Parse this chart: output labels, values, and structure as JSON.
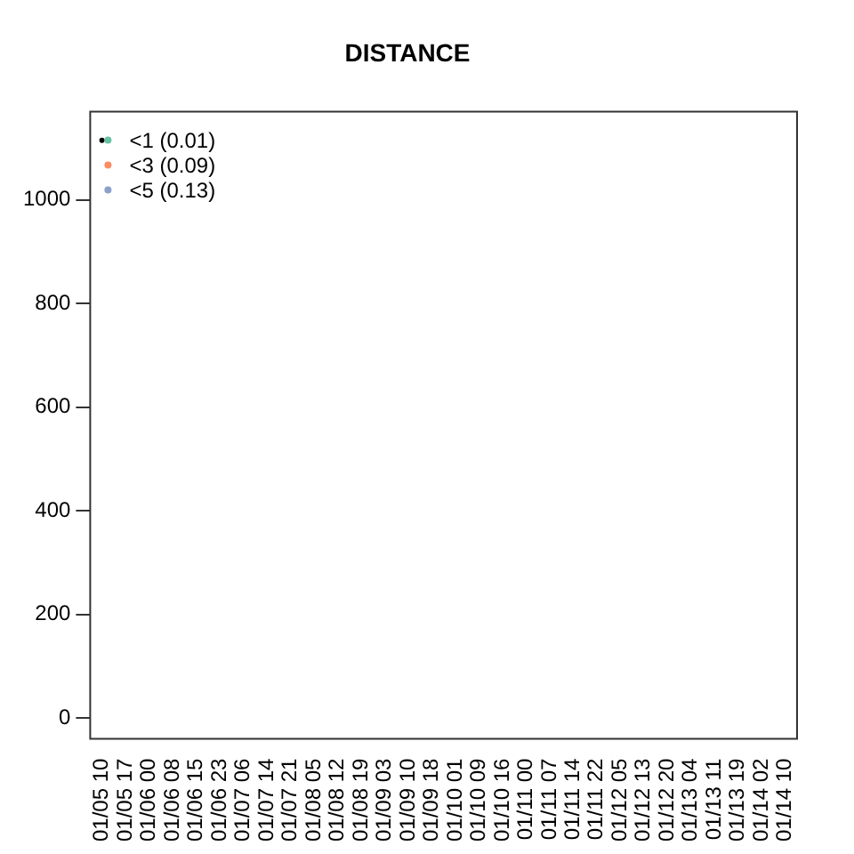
{
  "chart_data": {
    "type": "scatter",
    "title": "DISTANCE",
    "categories": [
      "01/05 10",
      "01/05 17",
      "01/06 00",
      "01/06 08",
      "01/06 15",
      "01/06 23",
      "01/07 06",
      "01/07 14",
      "01/07 21",
      "01/08 05",
      "01/08 12",
      "01/08 19",
      "01/09 03",
      "01/09 10",
      "01/09 18",
      "01/10 01",
      "01/10 09",
      "01/10 16",
      "01/11 00",
      "01/11 07",
      "01/11 14",
      "01/11 22",
      "01/12 05",
      "01/12 13",
      "01/12 20",
      "01/13 04",
      "01/13 11",
      "01/13 19",
      "01/14 02",
      "01/14 10"
    ],
    "series": [
      {
        "name": "<1 (0.01)",
        "color": "#66c2a5",
        "values": [
          null,
          null,
          null,
          null,
          null,
          null,
          null,
          null,
          null,
          null,
          null,
          null,
          null,
          null,
          null,
          null,
          null,
          null,
          null,
          null,
          null,
          null,
          null,
          null,
          null,
          null,
          null,
          null,
          null,
          null
        ]
      },
      {
        "name": "<3 (0.09)",
        "color": "#fc8d62",
        "values": [
          null,
          null,
          null,
          null,
          null,
          null,
          null,
          null,
          null,
          null,
          null,
          null,
          null,
          null,
          null,
          null,
          null,
          null,
          null,
          null,
          null,
          null,
          null,
          null,
          null,
          null,
          null,
          null,
          null,
          null
        ]
      },
      {
        "name": "<5 (0.13)",
        "color": "#8da0cb",
        "values": [
          null,
          null,
          null,
          null,
          null,
          null,
          null,
          null,
          null,
          null,
          null,
          null,
          null,
          null,
          null,
          null,
          null,
          null,
          null,
          null,
          null,
          null,
          null,
          null,
          null,
          null,
          null,
          null,
          null,
          null
        ]
      },
      {
        "color": "#000000",
        "values": [
          1115,
          null,
          null,
          null,
          null,
          null,
          null,
          null,
          null,
          null,
          null,
          null,
          null,
          null,
          null,
          null,
          null,
          null,
          null,
          null,
          null,
          null,
          null,
          null,
          null,
          null,
          null,
          null,
          null,
          null
        ]
      }
    ],
    "ylim": [
      -40,
      1170
    ],
    "yticks": [
      0,
      200,
      400,
      600,
      800,
      1000
    ],
    "grid": false,
    "legend": "top left",
    "marker": "circle"
  }
}
